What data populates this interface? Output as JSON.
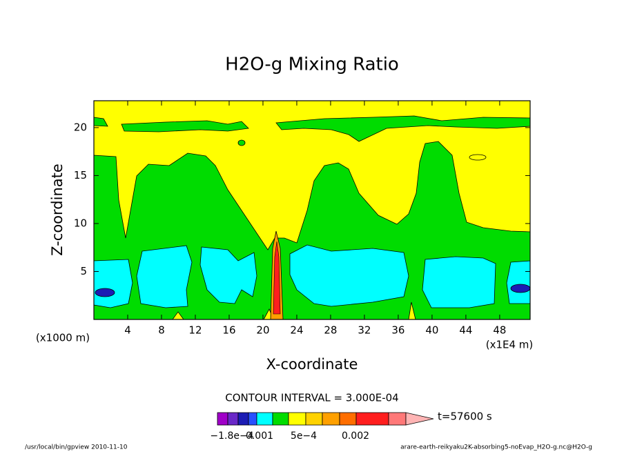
{
  "chart_data": {
    "type": "contour",
    "title": "H2O-g Mixing Ratio",
    "x_label": "X-coordinate",
    "y_label": "Z-coordinate",
    "x_unit": "(x1E4 m)",
    "y_unit": "(x1000 m)",
    "xlim": [
      0,
      51.6
    ],
    "xticks": [
      4,
      8,
      12,
      16,
      20,
      24,
      28,
      32,
      36,
      40,
      44,
      48
    ],
    "ylim": [
      0,
      22.8
    ],
    "yticks": [
      5,
      10,
      15,
      20
    ],
    "contour_interval": "CONTOUR INTERVAL = 3.000E-04",
    "time": "t=57600 s",
    "colorbar": {
      "colors": [
        "#a000c8",
        "#6a28c8",
        "#1c1cb4",
        "#2850ff",
        "#00ffff",
        "#00dc00",
        "#ffff00",
        "#ffd200",
        "#ffa000",
        "#ff6e00",
        "#ff1e1e",
        "#ff7878",
        "#ffb4b4"
      ],
      "labels": [
        "−1.8e−4",
        "0.001",
        "5e−4",
        "0.002"
      ]
    },
    "footer_left": "/usr/local/bin/gpview  2010-11-10",
    "footer_right": "arare-earth-reikyaku2K-absorbing5-noEvap_H2O-g.nc@H2O-g"
  }
}
